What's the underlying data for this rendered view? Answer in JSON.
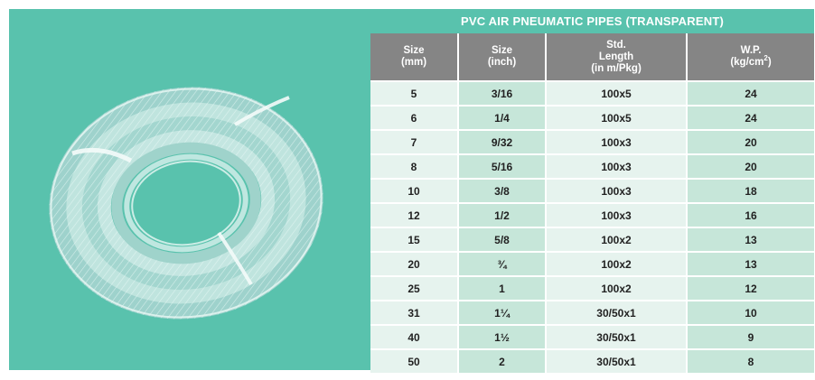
{
  "table": {
    "title": "PVC AIR PNEUMATIC PIPES (TRANSPARENT)",
    "headers": [
      {
        "lines": [
          "Size",
          "(mm)"
        ]
      },
      {
        "lines": [
          "Size",
          "(inch)"
        ]
      },
      {
        "lines": [
          "Std.",
          "Length",
          "(in m/Pkg)"
        ]
      },
      {
        "lines": [
          "W.P.",
          "(kg/cm",
          "2",
          ")"
        ]
      }
    ],
    "rows": [
      {
        "size_mm": "5",
        "size_inch": "3/16",
        "length": "100x5",
        "wp": "24"
      },
      {
        "size_mm": "6",
        "size_inch": "1/4",
        "length": "100x5",
        "wp": "24"
      },
      {
        "size_mm": "7",
        "size_inch": "9/32",
        "length": "100x3",
        "wp": "20"
      },
      {
        "size_mm": "8",
        "size_inch": "5/16",
        "length": "100x3",
        "wp": "20"
      },
      {
        "size_mm": "10",
        "size_inch": "3/8",
        "length": "100x3",
        "wp": "18"
      },
      {
        "size_mm": "12",
        "size_inch": "1/2",
        "length": "100x3",
        "wp": "16"
      },
      {
        "size_mm": "15",
        "size_inch": "5/8",
        "length": "100x2",
        "wp": "13"
      },
      {
        "size_mm": "20",
        "size_inch": "¾",
        "length": "100x2",
        "wp": "13"
      },
      {
        "size_mm": "25",
        "size_inch": "1",
        "length": "100x2",
        "wp": "12"
      },
      {
        "size_mm": "31",
        "size_inch": "1¼",
        "length": "30/50x1",
        "wp": "10"
      },
      {
        "size_mm": "40",
        "size_inch": "1½",
        "length": "30/50x1",
        "wp": "9"
      },
      {
        "size_mm": "50",
        "size_inch": "2",
        "length": "30/50x1",
        "wp": "8"
      }
    ]
  },
  "colors": {
    "accent_teal": "#59c2ad",
    "header_gray": "#858585",
    "row_light": "#e6f3ee",
    "row_dark": "#c6e6d9"
  },
  "image": {
    "icon": "coiled-transparent-pvc-hose-icon"
  }
}
